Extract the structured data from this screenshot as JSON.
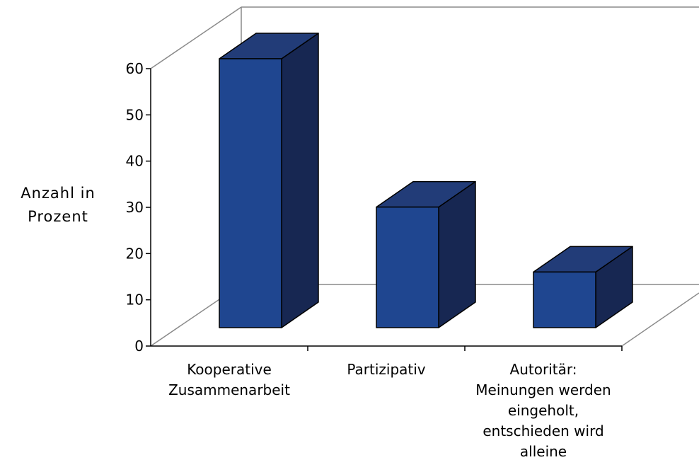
{
  "chart_data": {
    "type": "bar",
    "title": "",
    "xlabel": "",
    "ylabel": [
      "Anzahl in",
      "Prozent"
    ],
    "ylim": [
      0,
      60
    ],
    "yticks": [
      0,
      10,
      20,
      30,
      40,
      50,
      60
    ],
    "categories": [
      [
        "Kooperative",
        "Zusammenarbeit"
      ],
      [
        "Partizipativ"
      ],
      [
        "Autoritär:",
        "Meinungen werden",
        "eingeholt,",
        "entschieden wird",
        "alleine"
      ]
    ],
    "values": [
      58,
      26,
      12
    ],
    "bar_color": "#1f4690",
    "bar_top_color": "#223c78",
    "bar_side_color": "#172752",
    "grid": false,
    "legend": "none",
    "style": "3d-perspective"
  }
}
